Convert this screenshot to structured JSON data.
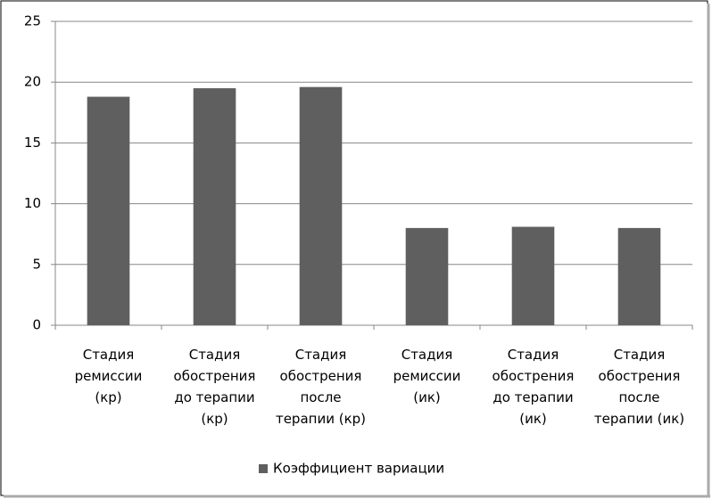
{
  "chart_data": {
    "type": "bar",
    "categories": [
      "Стадия\nремиссии\n(кр)",
      "Стадия\nобострения\nдо терапии\n(кр)",
      "Стадия\nобострения\nпосле\nтерапии (кр)",
      "Стадия\nремиссии\n(ик)",
      "Стадия\nобострения\nдо терапии\n(ик)",
      "Стадия\nобострения\nпосле\nтерапии (ик)"
    ],
    "series": [
      {
        "name": "Коэффициент вариации",
        "color": "#5f5f5f",
        "values": [
          18.8,
          19.5,
          19.6,
          8.0,
          8.1,
          8.0
        ]
      }
    ],
    "ylim": [
      0,
      25
    ],
    "yticks": [
      0,
      5,
      10,
      15,
      20,
      25
    ],
    "grid": true,
    "legend": "bottom"
  }
}
